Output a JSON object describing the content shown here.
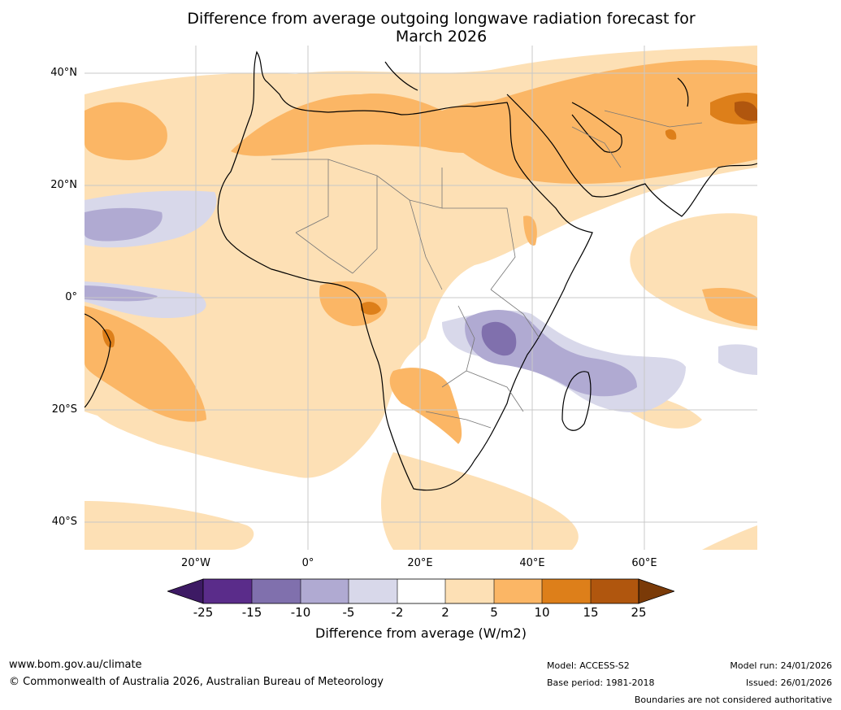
{
  "title": {
    "line1": "Difference from average outgoing longwave radiation forecast for",
    "line2": "March 2026"
  },
  "axes": {
    "lat_labels": [
      "40°N",
      "20°N",
      "0°",
      "20°S",
      "40°S"
    ],
    "lon_labels": [
      "20°W",
      "0°",
      "20°E",
      "40°E",
      "60°E"
    ]
  },
  "colorbar": {
    "ticks": [
      "-25",
      "-15",
      "-10",
      "-5",
      "-2",
      "2",
      "5",
      "10",
      "15",
      "25"
    ],
    "label": "Difference from average (W/m2)",
    "colors": [
      "#3d1a64",
      "#5a2c8a",
      "#8070ad",
      "#b0aad2",
      "#d8d8ea",
      "#ffffff",
      "#fde0b5",
      "#fbb665",
      "#dd7f1a",
      "#b0560e",
      "#7a3a08"
    ]
  },
  "footer": {
    "website": "www.bom.gov.au/climate",
    "copyright": "© Commonwealth of Australia 2026, Australian Bureau of Meteorology",
    "model": "Model: ACCESS-S2",
    "base_period": "Base period: 1981-2018",
    "model_run": "Model run: 24/01/2026",
    "issued": "Issued: 26/01/2026",
    "disclaimer": "Boundaries are not considered authoritative"
  }
}
